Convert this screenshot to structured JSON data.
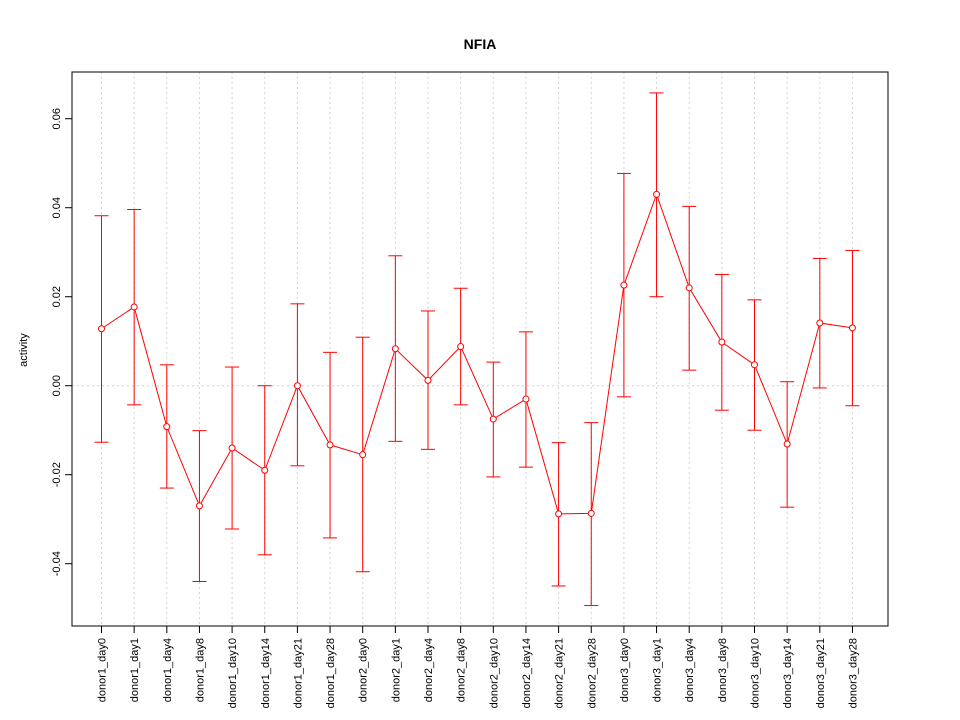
{
  "chart_data": {
    "type": "line",
    "title": "NFIA",
    "xlabel": "",
    "ylabel": "activity",
    "ylim": [
      -0.054,
      0.0705
    ],
    "yticks": [
      -0.04,
      -0.02,
      0.0,
      0.02,
      0.04,
      0.06
    ],
    "ytick_labels": [
      "-0.04",
      "-0.02",
      "0.00",
      "0.02",
      "0.04",
      "0.06"
    ],
    "grid": true,
    "line_color": "#ff0000",
    "categories": [
      "donor1_day0",
      "donor1_day1",
      "donor1_day4",
      "donor1_day8",
      "donor1_day10",
      "donor1_day14",
      "donor1_day21",
      "donor1_day28",
      "donor2_day0",
      "donor2_day1",
      "donor2_day4",
      "donor2_day8",
      "donor2_day10",
      "donor2_day14",
      "donor2_day21",
      "donor2_day28",
      "donor3_day0",
      "donor3_day1",
      "donor3_day4",
      "donor3_day8",
      "donor3_day10",
      "donor3_day14",
      "donor3_day21",
      "donor3_day28"
    ],
    "series": [
      {
        "values": [
          0.0128,
          0.0177,
          -0.0092,
          -0.027,
          -0.014,
          -0.019,
          0.0,
          -0.0133,
          -0.0155,
          0.0083,
          0.0012,
          0.0088,
          -0.0075,
          -0.003,
          -0.0288,
          -0.0287,
          0.0226,
          0.043,
          0.022,
          0.0098,
          0.0047,
          -0.0131,
          0.0141,
          0.013
        ],
        "lower": [
          -0.0127,
          -0.0043,
          -0.023,
          -0.044,
          -0.0322,
          -0.038,
          -0.018,
          -0.0342,
          -0.0418,
          -0.0125,
          -0.0143,
          -0.0043,
          -0.0205,
          -0.0183,
          -0.045,
          -0.0494,
          -0.0025,
          0.02,
          0.0035,
          -0.0055,
          -0.01,
          -0.0273,
          -0.0005,
          -0.0045
        ],
        "upper": [
          0.0382,
          0.0396,
          0.0047,
          -0.0101,
          0.0042,
          0.0,
          0.0184,
          0.0075,
          0.0109,
          0.0292,
          0.0168,
          0.0219,
          0.0053,
          0.0121,
          -0.0128,
          -0.0083,
          0.0477,
          0.0658,
          0.0403,
          0.025,
          0.0193,
          0.0009,
          0.0286,
          0.0304
        ]
      }
    ]
  }
}
